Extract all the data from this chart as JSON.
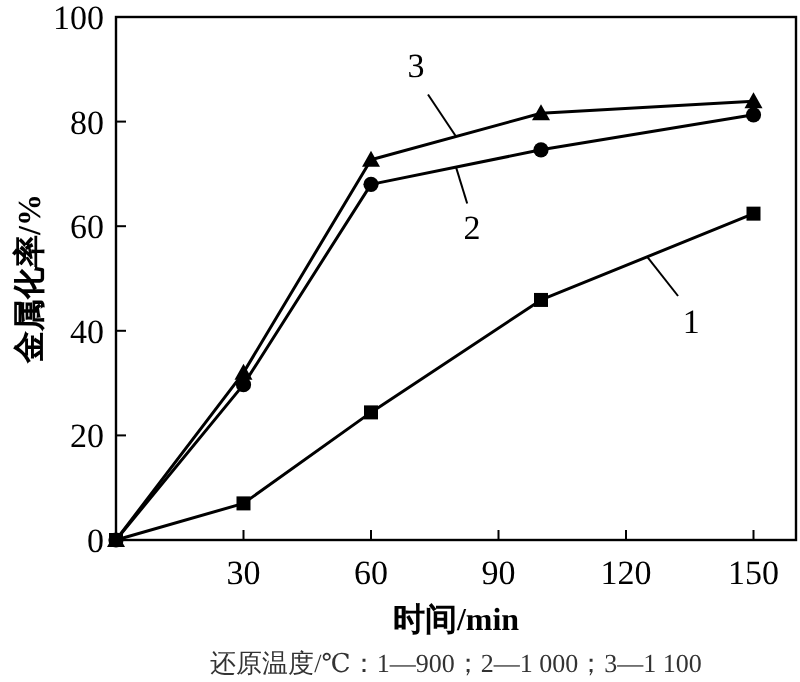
{
  "chart_data": {
    "type": "line",
    "x": [
      0,
      30,
      60,
      100,
      150
    ],
    "series": [
      {
        "name": "1",
        "color": "#000000",
        "marker": "square",
        "values": [
          0,
          7,
          24.4,
          45.9,
          62.4
        ]
      },
      {
        "name": "2",
        "color": "#000000",
        "marker": "circle",
        "values": [
          0,
          29.7,
          68,
          74.6,
          81.3
        ]
      },
      {
        "name": "3",
        "color": "#000000",
        "marker": "triangle",
        "values": [
          0,
          32,
          72.7,
          81.6,
          83.9
        ]
      }
    ],
    "xlabel": "时间/min",
    "ylabel": "金属化率/%",
    "xlim": [
      0,
      160
    ],
    "ylim": [
      0,
      100
    ],
    "xticks": [
      {
        "value": 0,
        "label": null
      },
      30,
      60,
      90,
      120,
      150
    ],
    "yticks": [
      0,
      20,
      40,
      60,
      80,
      100
    ],
    "grid": false,
    "legend": "right",
    "line_style": "solid",
    "annotations": [
      "还原温度/℃：1—900；2—1 000；3—1 100"
    ]
  }
}
